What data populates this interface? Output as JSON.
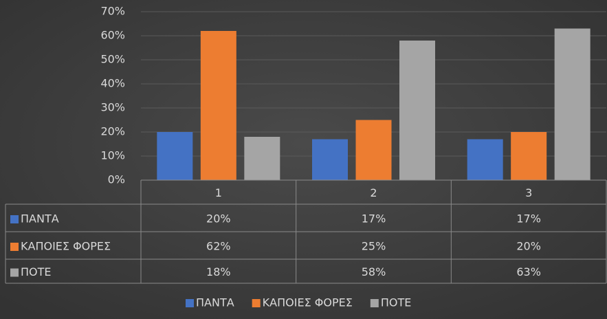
{
  "chart_data": {
    "type": "bar",
    "categories": [
      "1",
      "2",
      "3"
    ],
    "series": [
      {
        "name": "ΠΑΝΤΑ",
        "color": "#4472c4",
        "values": [
          20,
          17,
          17
        ],
        "value_labels": [
          "20%",
          "17%",
          "17%"
        ]
      },
      {
        "name": "ΚΑΠΟΙΕΣ ΦΟΡΕΣ",
        "color": "#ed7d31",
        "values": [
          62,
          25,
          20
        ],
        "value_labels": [
          "62%",
          "25%",
          "20%"
        ]
      },
      {
        "name": "ΠΟΤΕ",
        "color": "#a5a5a5",
        "values": [
          18,
          58,
          63
        ],
        "value_labels": [
          "18%",
          "58%",
          "63%"
        ]
      }
    ],
    "ylim": [
      0,
      70
    ],
    "yticks": [
      {
        "value": 0,
        "label": "0%"
      },
      {
        "value": 10,
        "label": "10%"
      },
      {
        "value": 20,
        "label": "20%"
      },
      {
        "value": 30,
        "label": "30%"
      },
      {
        "value": 40,
        "label": "40%"
      },
      {
        "value": 50,
        "label": "50%"
      },
      {
        "value": 60,
        "label": "60%"
      },
      {
        "value": 70,
        "label": "70%"
      }
    ],
    "grid": true,
    "legend": "bottom",
    "data_table": true
  }
}
